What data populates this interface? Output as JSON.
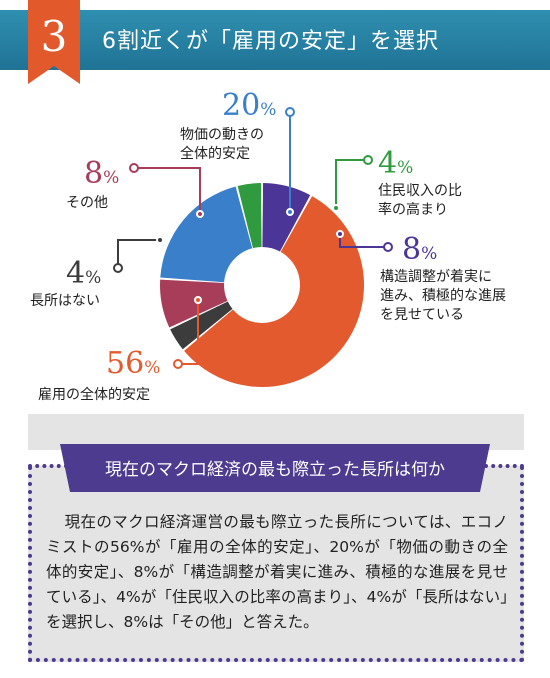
{
  "header": {
    "number": "3",
    "title": "6割近くが「雇用の安定」を選択"
  },
  "chart_data": {
    "type": "pie",
    "title": "",
    "unit": "%",
    "slices": [
      {
        "label": "物価の動きの全体的安定",
        "value": 20,
        "color": "#3a7fca"
      },
      {
        "label": "住民収入の比率の高まり",
        "value": 4,
        "color": "#2f9a3e"
      },
      {
        "label": "構造調整が着実に進み、積極的な進展を見せている",
        "value": 8,
        "color": "#4b3596"
      },
      {
        "label": "雇用の全体的安定",
        "value": 56,
        "color": "#e45a2f"
      },
      {
        "label": "長所はない",
        "value": 4,
        "color": "#3c3c3c"
      },
      {
        "label": "その他",
        "value": 8,
        "color": "#a83d5a"
      }
    ],
    "legend": "none"
  },
  "labels": {
    "price": {
      "value": "20",
      "symbol": "%",
      "line1": "物価の動きの",
      "line2": "全体的安定"
    },
    "income": {
      "value": "4",
      "symbol": "%",
      "line1": "住民収入の比",
      "line2": "率の高まり"
    },
    "structure": {
      "value": "8",
      "symbol": "%",
      "line1": "構造調整が着実に",
      "line2": "進み、積極的な進展",
      "line3": "を見せている"
    },
    "employment": {
      "value": "56",
      "symbol": "%",
      "line1": "雇用の全体的安定"
    },
    "none": {
      "value": "4",
      "symbol": "%",
      "line1": "長所はない"
    },
    "other": {
      "value": "8",
      "symbol": "%",
      "line1": "その他"
    }
  },
  "panel": {
    "title": "現在のマクロ経済の最も際立った長所は何か",
    "body": "現在のマクロ経済運営の最も際立った長所については、エコノミストの56%が「雇用の全体的安定」、20%が「物価の動きの全体的安定」、8%が「構造調整が着実に進み、積極的な進展を見せている」、4%が「住民収入の比率の高まり」、4%が「長所はない」を選択し、8%は「その他」と答えた。"
  },
  "colors": {
    "header": "#2684a8",
    "badge": "#e2592c",
    "panel_banner": "#4c3b8f",
    "panel_bg": "#e4e4e4"
  }
}
